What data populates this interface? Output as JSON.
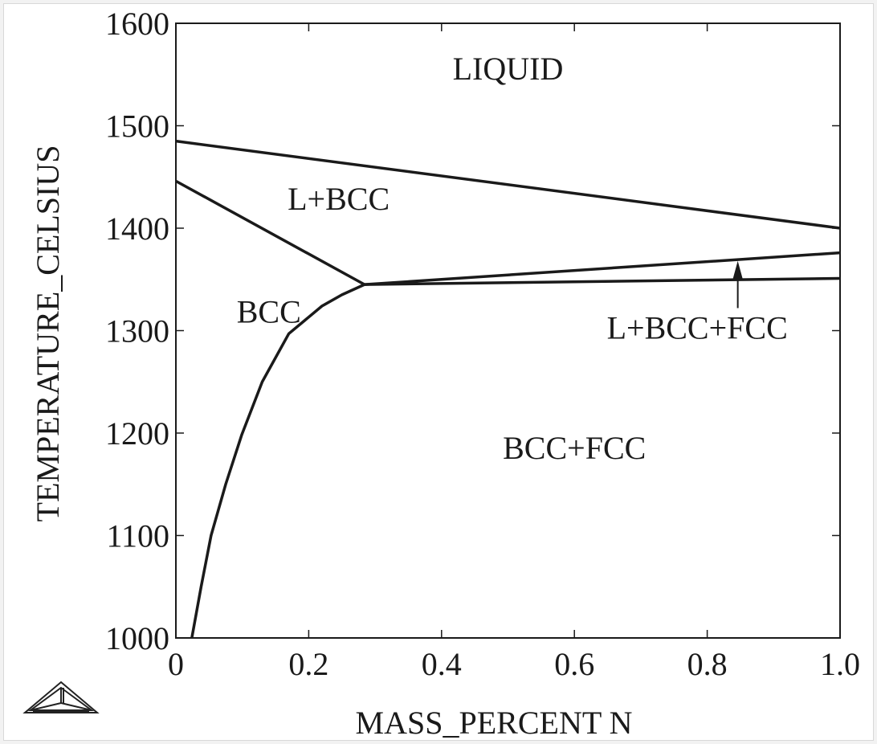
{
  "chart_data": {
    "type": "line",
    "title": "",
    "xlabel": "MASS_PERCENT N",
    "ylabel": "TEMPERATURE_CELSIUS",
    "xlim": [
      0,
      1.0
    ],
    "ylim": [
      1000,
      1600
    ],
    "xticks": [
      "0",
      "0.2",
      "0.4",
      "0.6",
      "0.8",
      "1.0"
    ],
    "xtick_values": [
      0,
      0.2,
      0.4,
      0.6,
      0.8,
      1.0
    ],
    "yticks": [
      "1000",
      "1100",
      "1200",
      "1300",
      "1400",
      "1500",
      "1600"
    ],
    "ytick_values": [
      1000,
      1100,
      1200,
      1300,
      1400,
      1500,
      1600
    ],
    "grid": false,
    "line_color": "#1a1a1a",
    "series": [
      {
        "x": [
          0,
          1.0
        ],
        "y": [
          1485,
          1400
        ]
      },
      {
        "x": [
          0,
          0.284
        ],
        "y": [
          1446,
          1345
        ]
      },
      {
        "x": [
          0.284,
          1.0
        ],
        "y": [
          1345,
          1376
        ]
      },
      {
        "x": [
          0.284,
          1.0
        ],
        "y": [
          1345,
          1351
        ]
      },
      {
        "x": [
          0.284,
          0.25,
          0.22,
          0.17,
          0.13,
          0.099,
          0.075,
          0.053,
          0.038,
          0.024
        ],
        "y": [
          1345,
          1335,
          1324,
          1297,
          1250,
          1198,
          1150,
          1100,
          1050,
          1000
        ]
      }
    ],
    "annotations": [
      {
        "text": "LIQUID",
        "x": 0.5,
        "y": 1545
      },
      {
        "text": "L+BCC",
        "x": 0.245,
        "y": 1418
      },
      {
        "text": "BCC",
        "x": 0.14,
        "y": 1308
      },
      {
        "text": "L+BCC+FCC",
        "x": 0.785,
        "y": 1292
      },
      {
        "text": "BCC+FCC",
        "x": 0.6,
        "y": 1175
      }
    ],
    "arrow": {
      "x": 0.846,
      "y_from": 1322,
      "y_to": 1368
    }
  },
  "logo": {
    "icon": "thermo-calc-triangle-logo"
  }
}
